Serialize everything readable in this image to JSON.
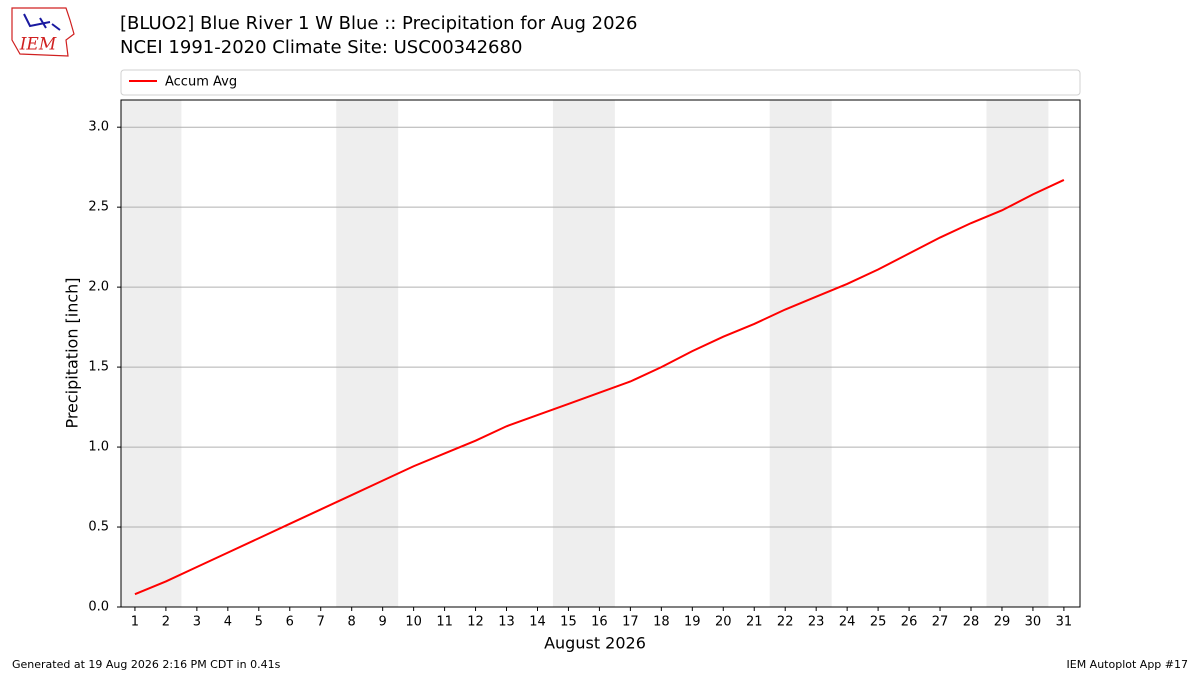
{
  "chart_data": {
    "type": "line",
    "title": "[BLUO2] Blue River 1 W Blue :: Precipitation for Aug 2026",
    "subtitle": "NCEI 1991-2020 Climate Site: USC00342680",
    "xlabel": "August 2026",
    "ylabel": "Precipitation [inch]",
    "x": [
      1,
      2,
      3,
      4,
      5,
      6,
      7,
      8,
      9,
      10,
      11,
      12,
      13,
      14,
      15,
      16,
      17,
      18,
      19,
      20,
      21,
      22,
      23,
      24,
      25,
      26,
      27,
      28,
      29,
      30,
      31
    ],
    "series": [
      {
        "name": "Accum Avg",
        "color": "#ff0000",
        "values": [
          0.08,
          0.16,
          0.25,
          0.34,
          0.43,
          0.52,
          0.61,
          0.7,
          0.79,
          0.88,
          0.96,
          1.04,
          1.13,
          1.2,
          1.27,
          1.34,
          1.41,
          1.5,
          1.6,
          1.69,
          1.77,
          1.86,
          1.94,
          2.02,
          2.11,
          2.21,
          2.31,
          2.4,
          2.48,
          2.58,
          2.67
        ]
      }
    ],
    "xlim": [
      0.55,
      31.52
    ],
    "ylim": [
      0,
      3.17
    ],
    "xticks": [
      1,
      2,
      3,
      4,
      5,
      6,
      7,
      8,
      9,
      10,
      11,
      12,
      13,
      14,
      15,
      16,
      17,
      18,
      19,
      20,
      21,
      22,
      23,
      24,
      25,
      26,
      27,
      28,
      29,
      30,
      31
    ],
    "yticks": [
      {
        "value": 0,
        "label": "0.0"
      },
      0.5,
      {
        "value": 1,
        "label": "1.0"
      },
      1.5,
      {
        "value": 2,
        "label": "2.0"
      },
      2.5,
      {
        "value": 3,
        "label": "3.0"
      }
    ],
    "shaded_spans": [
      [
        0.5,
        2.5
      ],
      [
        7.5,
        9.5
      ],
      [
        14.5,
        16.5
      ],
      [
        21.5,
        23.5
      ],
      [
        28.5,
        30.5
      ]
    ],
    "shade_color": "#eeeeee",
    "grid": true,
    "legend": "top"
  },
  "logo": "IEM",
  "footer_left": "Generated at 19 Aug 2026 2:16 PM CDT in 0.41s",
  "footer_right": "IEM Autoplot App #17"
}
